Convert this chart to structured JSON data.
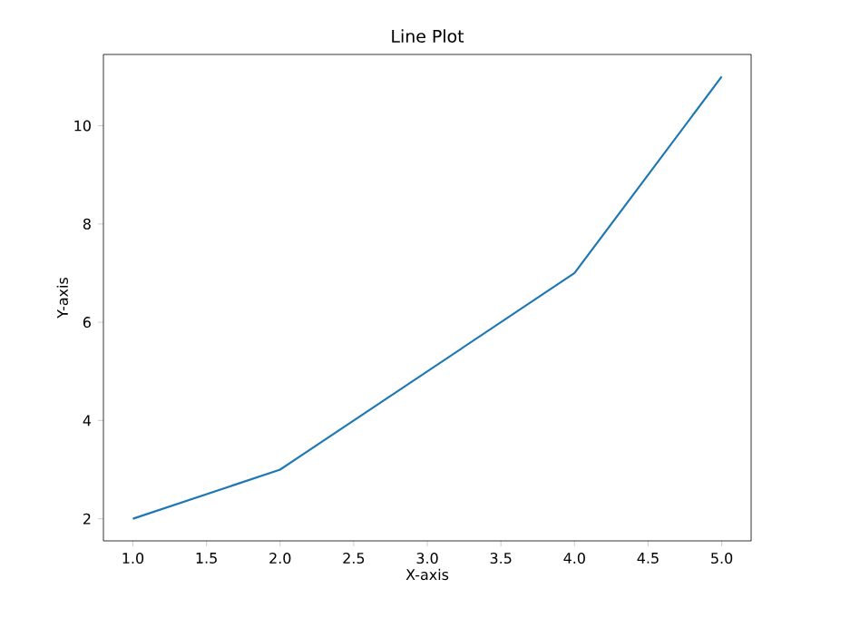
{
  "chart_data": {
    "type": "line",
    "title": "Line Plot",
    "xlabel": "X-axis",
    "ylabel": "Y-axis",
    "x": [
      1,
      2,
      3,
      4,
      5
    ],
    "series": [
      {
        "color": "#1f77b4",
        "values": [
          2,
          3,
          5,
          7,
          11
        ]
      }
    ],
    "xlim": [
      0.8,
      5.2
    ],
    "ylim": [
      1.55,
      11.45
    ],
    "xticks": [
      {
        "value": 1,
        "label": "1.0"
      },
      {
        "value": 1.5,
        "label": "1.5"
      },
      {
        "value": 2,
        "label": "2.0"
      },
      {
        "value": 2.5,
        "label": "2.5"
      },
      {
        "value": 3,
        "label": "3.0"
      },
      {
        "value": 3.5,
        "label": "3.5"
      },
      {
        "value": 4,
        "label": "4.0"
      },
      {
        "value": 4.5,
        "label": "4.5"
      },
      {
        "value": 5,
        "label": "5.0"
      }
    ],
    "yticks": [
      2,
      4,
      6,
      8,
      10
    ]
  }
}
